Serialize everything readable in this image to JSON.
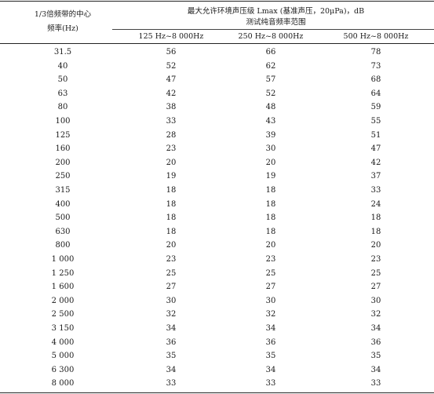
{
  "table": {
    "header": {
      "band_line1": "1/3倍频带的中心",
      "band_line2": "频率(Hz)",
      "main_title": "最大允许环境声压级 Lmax (基准声压，20μPa)，dB",
      "sub_title": "测试纯音频率范围",
      "columns": [
        "125 Hz~8 000Hz",
        "250 Hz~8 000Hz",
        "500 Hz~8 000Hz"
      ]
    },
    "rows": [
      [
        "31.5",
        "56",
        "66",
        "78"
      ],
      [
        "40",
        "52",
        "62",
        "73"
      ],
      [
        "50",
        "47",
        "57",
        "68"
      ],
      [
        "63",
        "42",
        "52",
        "64"
      ],
      [
        "80",
        "38",
        "48",
        "59"
      ],
      [
        "100",
        "33",
        "43",
        "55"
      ],
      [
        "125",
        "28",
        "39",
        "51"
      ],
      [
        "160",
        "23",
        "30",
        "47"
      ],
      [
        "200",
        "20",
        "20",
        "42"
      ],
      [
        "250",
        "19",
        "19",
        "37"
      ],
      [
        "315",
        "18",
        "18",
        "33"
      ],
      [
        "400",
        "18",
        "18",
        "24"
      ],
      [
        "500",
        "18",
        "18",
        "18"
      ],
      [
        "630",
        "18",
        "18",
        "18"
      ],
      [
        "800",
        "20",
        "20",
        "20"
      ],
      [
        "1 000",
        "23",
        "23",
        "23"
      ],
      [
        "1 250",
        "25",
        "25",
        "25"
      ],
      [
        "1 600",
        "27",
        "27",
        "27"
      ],
      [
        "2 000",
        "30",
        "30",
        "30"
      ],
      [
        "2 500",
        "32",
        "32",
        "32"
      ],
      [
        "3 150",
        "34",
        "34",
        "34"
      ],
      [
        "4 000",
        "36",
        "36",
        "36"
      ],
      [
        "5 000",
        "35",
        "35",
        "35"
      ],
      [
        "6 300",
        "34",
        "34",
        "34"
      ],
      [
        "8 000",
        "33",
        "33",
        "33"
      ]
    ]
  }
}
